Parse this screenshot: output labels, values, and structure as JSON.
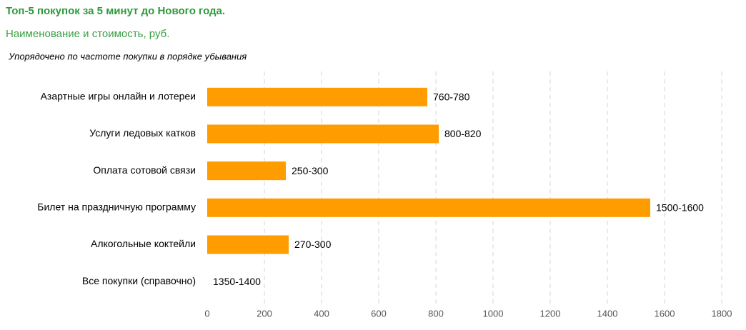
{
  "chart_data": {
    "type": "barh",
    "title": "Топ-5 покупок за 5 минут до Нового года.",
    "subtitle": "Наименование и стоимость, руб.",
    "note": "Упорядочено по частоте покупки в порядке убывания",
    "categories": [
      "Азартные игры онлайн и лотереи",
      "Услуги ледовых катков",
      "Оплата сотовой связи",
      "Билет на праздничную программу",
      "Алкогольные коктейли",
      "Все покупки (справочно)"
    ],
    "values": [
      770,
      810,
      275,
      1550,
      285,
      null
    ],
    "value_labels": [
      "760-780",
      "800-820",
      "250-300",
      "1500-1600",
      "270-300",
      "1350-1400"
    ],
    "color": "#ff9c00",
    "xlim": [
      0,
      1800
    ],
    "xticks": [
      0,
      200,
      400,
      600,
      800,
      1000,
      1200,
      1400,
      1600,
      1800
    ],
    "grid": true
  }
}
